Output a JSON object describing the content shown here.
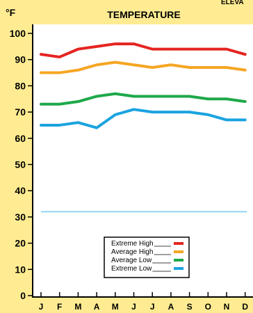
{
  "header": {
    "corner_text": "ELEVA"
  },
  "chart_data": {
    "type": "line",
    "title": "TEMPERATURE",
    "y_unit": "°F",
    "categories": [
      "J",
      "F",
      "M",
      "A",
      "M",
      "J",
      "J",
      "A",
      "S",
      "O",
      "N",
      "D"
    ],
    "ylim": [
      0,
      100
    ],
    "yticks": [
      0,
      10,
      20,
      30,
      40,
      50,
      60,
      70,
      80,
      90,
      100
    ],
    "grid": false,
    "legend_position": "bottom-center",
    "reference_line": {
      "value": 32,
      "color": "#8fd3f0"
    },
    "series": [
      {
        "name": "Extreme High",
        "color": "#e52421",
        "values": [
          92,
          91,
          94,
          95,
          96,
          96,
          94,
          94,
          94,
          94,
          94,
          92
        ]
      },
      {
        "name": "Average High",
        "color": "#f5a623",
        "values": [
          85,
          85,
          86,
          88,
          89,
          88,
          87,
          88,
          87,
          87,
          87,
          86
        ]
      },
      {
        "name": "Average Low",
        "color": "#1ea84a",
        "values": [
          73,
          73,
          74,
          76,
          77,
          76,
          76,
          76,
          76,
          75,
          75,
          74
        ]
      },
      {
        "name": "Extreme Low",
        "color": "#1aa3e0",
        "values": [
          65,
          65,
          66,
          64,
          69,
          71,
          70,
          70,
          70,
          69,
          67,
          67
        ]
      }
    ]
  }
}
